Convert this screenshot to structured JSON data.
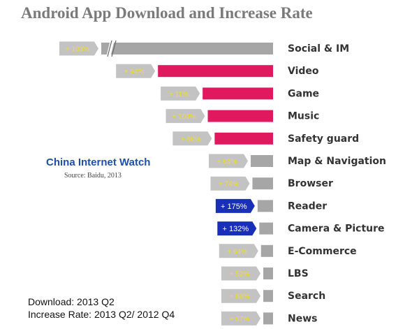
{
  "chart_data": {
    "type": "bar",
    "title": "Android App Download and Increase Rate",
    "categories": [
      "Social & IM",
      "Video",
      "Game",
      "Music",
      "Safety guard",
      "Map & Navigation",
      "Browser",
      "Reader",
      "Camera & Picture",
      "E-Commerce",
      "LBS",
      "Search",
      "News"
    ],
    "download_share": [
      1.0,
      0.67,
      0.41,
      0.38,
      0.34,
      0.13,
      0.12,
      0.09,
      0.08,
      0.07,
      0.05,
      0.04,
      0.03
    ],
    "increase_labels": [
      "+ 103%",
      "+ 94%",
      "+ 11%",
      "+ 100%",
      "+ 86%",
      "+ 63%",
      "+ 74%",
      "+ 175%",
      "+ 132%",
      "+ 64%",
      "+ 52%",
      "+ 88%",
      "+ 67%"
    ],
    "highlighted": [
      false,
      true,
      true,
      true,
      true,
      false,
      false,
      false,
      false,
      false,
      false,
      false,
      false
    ],
    "axis_break_on_first_bar": true,
    "colors": {
      "highlight_bar": "#e0195f",
      "normal_bar": "#a6a6a6",
      "label_box": "#c3c3c3",
      "label_box_strong": "#1a2fb8",
      "label_text": "#f0e01e",
      "label_text_strong": "#ffffff",
      "category_text": "#333333"
    }
  },
  "brand": "China Internet Watch",
  "source": "Source: Baidu,  2013",
  "notes": {
    "download": "Download: 2013 Q2",
    "increase": "Increase Rate: 2013 Q2/ 2012 Q4"
  }
}
